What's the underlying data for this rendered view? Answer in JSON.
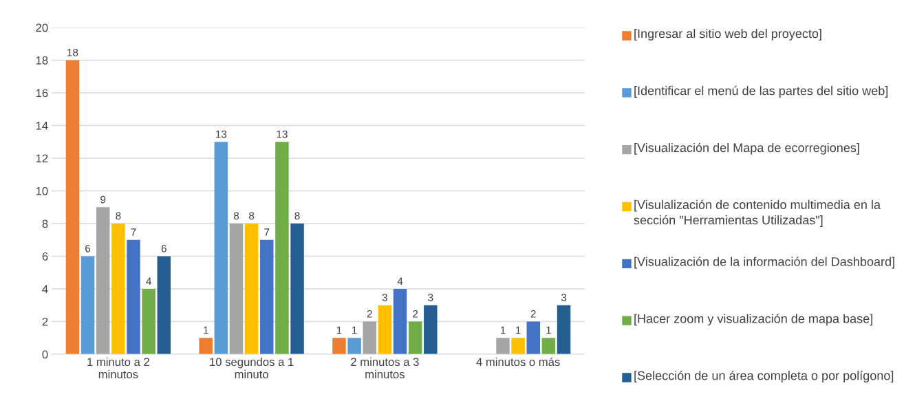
{
  "chart_data": {
    "type": "bar",
    "categories": [
      "1 minuto a 2 minutos",
      "10 segundos a 1 minuto",
      "2 minutos a 3 minutos",
      "4 minutos o más"
    ],
    "series": [
      {
        "name": "[Ingresar al sitio web del proyecto]",
        "color": "#ed7d31",
        "values": [
          18,
          1,
          1,
          null
        ]
      },
      {
        "name": "[Identificar el menú de las partes del sitio web]",
        "color": "#5b9bd5",
        "values": [
          6,
          13,
          1,
          null
        ]
      },
      {
        "name": "[Visualización del Mapa de ecorregiones]",
        "color": "#a5a5a5",
        "values": [
          9,
          8,
          2,
          1
        ]
      },
      {
        "name": "[Visulalización de contenido multimedia en la sección \"Herramientas Utilizadas\"]",
        "color": "#ffc000",
        "values": [
          8,
          8,
          3,
          1
        ]
      },
      {
        "name": "[Visualización de la información del Dashboard]",
        "color": "#4472c4",
        "values": [
          7,
          7,
          4,
          2
        ]
      },
      {
        "name": "[Hacer zoom y visualización de mapa base]",
        "color": "#70ad47",
        "values": [
          4,
          13,
          2,
          1
        ]
      },
      {
        "name": "[Selección de un área completa o por polígono]",
        "color": "#255e91",
        "values": [
          6,
          8,
          3,
          3
        ]
      }
    ],
    "ylim": [
      0,
      20
    ],
    "yticks": [
      0,
      2,
      4,
      6,
      8,
      10,
      12,
      14,
      16,
      18,
      20
    ],
    "grid": "y",
    "legend": "right",
    "data_labels": true
  }
}
